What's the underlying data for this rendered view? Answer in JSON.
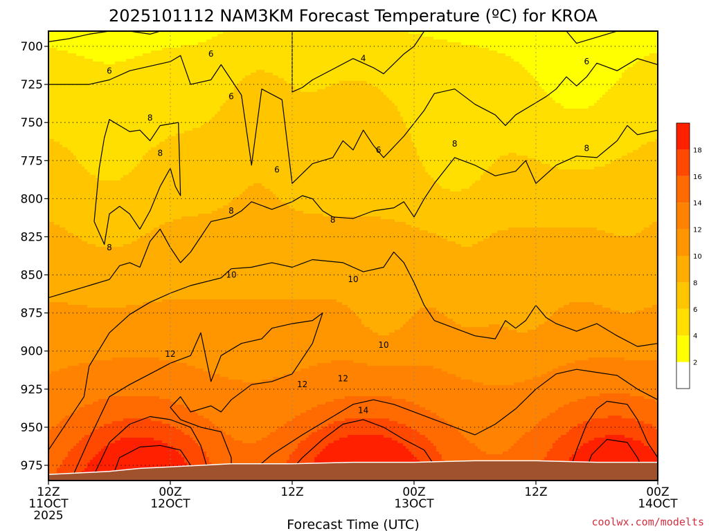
{
  "chart_data": {
    "type": "heatmap",
    "title": "2025101112 NAM3KM Forecast Temperature (ºC) for KROA",
    "xlabel": "Forecast Time (UTC)",
    "ylabel": "",
    "x_range_hours": [
      0,
      60
    ],
    "y_range_hpa": [
      690,
      985
    ],
    "y_ticks": [
      700,
      725,
      750,
      775,
      800,
      825,
      850,
      875,
      900,
      925,
      950,
      975
    ],
    "y_tick_labels": [
      "700",
      "725",
      "750",
      "775",
      "800",
      "825",
      "850",
      "875",
      "900",
      "925",
      "950",
      "975"
    ],
    "x_ticks": [
      {
        "hour": 0,
        "l1": "12Z",
        "l2": "11OCT",
        "l3": "2025"
      },
      {
        "hour": 12,
        "l1": "00Z",
        "l2": "12OCT",
        "l3": ""
      },
      {
        "hour": 24,
        "l1": "12Z",
        "l2": "",
        "l3": ""
      },
      {
        "hour": 36,
        "l1": "00Z",
        "l2": "13OCT",
        "l3": ""
      },
      {
        "hour": 48,
        "l1": "12Z",
        "l2": "",
        "l3": ""
      },
      {
        "hour": 60,
        "l1": "00Z",
        "l2": "14OCT",
        "l3": ""
      }
    ],
    "colorbar": {
      "min": 0,
      "max": 20,
      "levels": [
        0,
        2,
        4,
        6,
        8,
        10,
        12,
        14,
        16,
        18,
        20
      ],
      "labels": [
        "2",
        "4",
        "6",
        "8",
        "10",
        "12",
        "14",
        "16",
        "18"
      ],
      "colors": [
        "#ffffff",
        "#ffff00",
        "#ffdf00",
        "#ffc600",
        "#ffad00",
        "#ff9600",
        "#ff8300",
        "#ff6b00",
        "#ff4800",
        "#ff2000"
      ]
    },
    "series": [
      {
        "name": "4",
        "values": [
          [
            0,
            690
          ],
          [
            0,
            697
          ],
          [
            2,
            695
          ],
          [
            4,
            692
          ],
          [
            6,
            690
          ],
          [
            8,
            690
          ],
          [
            10,
            692
          ],
          [
            11,
            690
          ]
        ]
      },
      {
        "name": "4",
        "values": [
          [
            24,
            690
          ],
          [
            24,
            730
          ],
          [
            25,
            727
          ],
          [
            26,
            722
          ],
          [
            28,
            715
          ],
          [
            30,
            708
          ],
          [
            32,
            714
          ],
          [
            33,
            718
          ],
          [
            35,
            705
          ],
          [
            36,
            700
          ],
          [
            37,
            690
          ]
        ]
      },
      {
        "name": "4",
        "values": [
          [
            51,
            690
          ],
          [
            52,
            698
          ],
          [
            54,
            694
          ],
          [
            56,
            690
          ],
          [
            60,
            690
          ]
        ]
      },
      {
        "name": "6",
        "values": [
          [
            0,
            725
          ],
          [
            4,
            725
          ],
          [
            6,
            722
          ],
          [
            8,
            716
          ],
          [
            10,
            713
          ],
          [
            12,
            710
          ],
          [
            13,
            706
          ],
          [
            14,
            725
          ],
          [
            16,
            722
          ],
          [
            17,
            712
          ],
          [
            18,
            722
          ],
          [
            19,
            732
          ],
          [
            20,
            778
          ],
          [
            21,
            728
          ],
          [
            23,
            735
          ],
          [
            24,
            790
          ],
          [
            26,
            777
          ],
          [
            28,
            773
          ],
          [
            29,
            762
          ],
          [
            30,
            768
          ],
          [
            31,
            755
          ],
          [
            32,
            765
          ],
          [
            33,
            773
          ],
          [
            35,
            759
          ],
          [
            37,
            742
          ],
          [
            38,
            731
          ],
          [
            40,
            728
          ],
          [
            42,
            738
          ],
          [
            44,
            745
          ],
          [
            45,
            752
          ],
          [
            46,
            745
          ],
          [
            48,
            737
          ],
          [
            49,
            733
          ],
          [
            50,
            728
          ],
          [
            51,
            720
          ],
          [
            52,
            726
          ],
          [
            53,
            720
          ],
          [
            54,
            711
          ],
          [
            56,
            716
          ],
          [
            58,
            708
          ],
          [
            60,
            712
          ]
        ]
      },
      {
        "name": "8",
        "values": [
          [
            0,
            865
          ],
          [
            2,
            861
          ],
          [
            4,
            857
          ],
          [
            6,
            853
          ],
          [
            7,
            844
          ],
          [
            8,
            842
          ],
          [
            9,
            845
          ],
          [
            10,
            828
          ],
          [
            11,
            820
          ],
          [
            12,
            832
          ],
          [
            13,
            842
          ],
          [
            14,
            835
          ],
          [
            16,
            815
          ],
          [
            18,
            812
          ],
          [
            19,
            808
          ],
          [
            20,
            802
          ],
          [
            22,
            807
          ],
          [
            24,
            802
          ],
          [
            25,
            798
          ],
          [
            26,
            800
          ],
          [
            27,
            808
          ],
          [
            28,
            812
          ],
          [
            30,
            813
          ],
          [
            32,
            808
          ],
          [
            34,
            806
          ],
          [
            35,
            802
          ],
          [
            36,
            812
          ],
          [
            37,
            800
          ],
          [
            38,
            790
          ],
          [
            40,
            773
          ],
          [
            42,
            778
          ],
          [
            44,
            785
          ],
          [
            46,
            782
          ],
          [
            47,
            775
          ],
          [
            48,
            790
          ],
          [
            50,
            778
          ],
          [
            52,
            772
          ],
          [
            54,
            773
          ],
          [
            56,
            762
          ],
          [
            57,
            752
          ],
          [
            58,
            758
          ],
          [
            60,
            755
          ]
        ]
      },
      {
        "name": "8",
        "values": [
          [
            4.5,
            815
          ],
          [
            5,
            780
          ],
          [
            5.5,
            760
          ],
          [
            6,
            748
          ],
          [
            7,
            752
          ],
          [
            8,
            756
          ],
          [
            9,
            755
          ],
          [
            10,
            762
          ],
          [
            11,
            752
          ],
          [
            12.8,
            750
          ],
          [
            13,
            798
          ],
          [
            12.5,
            792
          ],
          [
            12,
            780
          ],
          [
            11,
            792
          ],
          [
            10,
            808
          ],
          [
            9,
            820
          ],
          [
            8,
            810
          ],
          [
            7,
            805
          ],
          [
            6,
            810
          ],
          [
            5.5,
            830
          ],
          [
            4.5,
            815
          ]
        ]
      },
      {
        "name": "10",
        "values": [
          [
            0,
            965
          ],
          [
            2,
            945
          ],
          [
            3.5,
            930
          ],
          [
            4,
            910
          ],
          [
            6,
            888
          ],
          [
            8,
            876
          ],
          [
            10,
            868
          ],
          [
            12,
            862
          ],
          [
            14,
            857
          ],
          [
            17,
            852
          ],
          [
            18,
            846
          ],
          [
            20,
            845
          ],
          [
            22,
            842
          ],
          [
            24,
            845
          ],
          [
            26,
            840
          ],
          [
            29,
            842
          ],
          [
            31,
            848
          ],
          [
            33,
            845
          ],
          [
            34,
            835
          ],
          [
            35,
            842
          ],
          [
            36,
            855
          ],
          [
            37,
            870
          ],
          [
            38,
            880
          ],
          [
            40,
            885
          ],
          [
            42,
            890
          ],
          [
            44,
            892
          ],
          [
            45,
            880
          ],
          [
            46,
            885
          ],
          [
            47,
            880
          ],
          [
            48,
            870
          ],
          [
            49,
            878
          ],
          [
            50,
            882
          ],
          [
            52,
            887
          ],
          [
            54,
            882
          ],
          [
            56,
            890
          ],
          [
            58,
            897
          ],
          [
            60,
            895
          ]
        ]
      },
      {
        "name": "12",
        "values": [
          [
            2,
            988
          ],
          [
            4,
            958
          ],
          [
            6,
            930
          ],
          [
            8,
            922
          ],
          [
            10,
            915
          ],
          [
            12,
            908
          ],
          [
            14,
            903
          ],
          [
            15,
            888
          ],
          [
            16,
            920
          ],
          [
            17,
            903
          ],
          [
            19,
            895
          ],
          [
            21,
            892
          ],
          [
            22,
            885
          ],
          [
            24,
            882
          ],
          [
            26,
            880
          ],
          [
            27,
            875
          ],
          [
            26,
            895
          ],
          [
            24,
            915
          ],
          [
            22,
            920
          ],
          [
            20,
            922
          ],
          [
            18,
            932
          ],
          [
            17,
            940
          ],
          [
            16,
            936
          ],
          [
            14,
            940
          ],
          [
            13,
            930
          ],
          [
            12,
            937
          ],
          [
            13,
            945
          ],
          [
            15,
            950
          ],
          [
            17,
            953
          ],
          [
            18,
            970
          ],
          [
            18,
            985
          ]
        ]
      },
      {
        "name": "12",
        "values": [
          [
            19,
            985
          ],
          [
            22,
            968
          ],
          [
            25,
            955
          ],
          [
            28,
            943
          ],
          [
            30,
            935
          ],
          [
            32,
            932
          ],
          [
            34,
            935
          ],
          [
            36,
            940
          ],
          [
            38,
            945
          ],
          [
            40,
            950
          ],
          [
            42,
            955
          ],
          [
            44,
            948
          ],
          [
            46,
            938
          ],
          [
            48,
            925
          ],
          [
            50,
            915
          ],
          [
            52,
            912
          ],
          [
            54,
            914
          ],
          [
            56,
            916
          ],
          [
            58,
            925
          ],
          [
            60,
            932
          ]
        ]
      },
      {
        "name": "14",
        "values": [
          [
            4,
            988
          ],
          [
            6,
            960
          ],
          [
            8,
            948
          ],
          [
            10,
            943
          ],
          [
            12,
            945
          ],
          [
            14,
            950
          ],
          [
            15,
            962
          ],
          [
            16,
            985
          ]
        ]
      },
      {
        "name": "14",
        "values": [
          [
            23,
            985
          ],
          [
            25,
            970
          ],
          [
            27,
            958
          ],
          [
            29,
            948
          ],
          [
            31,
            945
          ],
          [
            33,
            950
          ],
          [
            35,
            958
          ],
          [
            37,
            965
          ],
          [
            38,
            975
          ],
          [
            39,
            985
          ]
        ]
      },
      {
        "name": "14",
        "values": [
          [
            51,
            985
          ],
          [
            52,
            965
          ],
          [
            53,
            948
          ],
          [
            54,
            938
          ],
          [
            55,
            933
          ],
          [
            57,
            935
          ],
          [
            58,
            945
          ],
          [
            59,
            960
          ],
          [
            60,
            970
          ]
        ]
      },
      {
        "name": "16",
        "values": [
          [
            6,
            988
          ],
          [
            7,
            970
          ],
          [
            9,
            963
          ],
          [
            11,
            962
          ],
          [
            13,
            965
          ],
          [
            14,
            975
          ],
          [
            14.5,
            985
          ]
        ]
      },
      {
        "name": "16",
        "values": [
          [
            52.5,
            985
          ],
          [
            53.5,
            968
          ],
          [
            55,
            958
          ],
          [
            57,
            960
          ],
          [
            58,
            970
          ],
          [
            59,
            985
          ]
        ]
      },
      {
        "name": "18",
        "values": [
          [
            8,
            985
          ],
          [
            9,
            980
          ],
          [
            10,
            979
          ],
          [
            11,
            985
          ]
        ]
      },
      {
        "name": "18",
        "values": [
          [
            55,
            985
          ],
          [
            56,
            980
          ],
          [
            57,
            985
          ]
        ]
      }
    ],
    "contour_labels": [
      {
        "text": "4",
        "hour": 31,
        "hpa": 708
      },
      {
        "text": "6",
        "hour": 6,
        "hpa": 716
      },
      {
        "text": "6",
        "hour": 16,
        "hpa": 705
      },
      {
        "text": "6",
        "hour": 18,
        "hpa": 733
      },
      {
        "text": "6",
        "hour": 22.5,
        "hpa": 781
      },
      {
        "text": "6",
        "hour": 32.5,
        "hpa": 768
      },
      {
        "text": "6",
        "hour": 53,
        "hpa": 710
      },
      {
        "text": "8",
        "hour": 10,
        "hpa": 747
      },
      {
        "text": "8",
        "hour": 11,
        "hpa": 770
      },
      {
        "text": "8",
        "hour": 6,
        "hpa": 832
      },
      {
        "text": "8",
        "hour": 18,
        "hpa": 808
      },
      {
        "text": "8",
        "hour": 28,
        "hpa": 814
      },
      {
        "text": "8",
        "hour": 40,
        "hpa": 764
      },
      {
        "text": "8",
        "hour": 53,
        "hpa": 767
      },
      {
        "text": "10",
        "hour": 18,
        "hpa": 850
      },
      {
        "text": "10",
        "hour": 30,
        "hpa": 853
      },
      {
        "text": "10",
        "hour": 33,
        "hpa": 896
      },
      {
        "text": "12",
        "hour": 12,
        "hpa": 902
      },
      {
        "text": "12",
        "hour": 25,
        "hpa": 922
      },
      {
        "text": "12",
        "hour": 29,
        "hpa": 918
      },
      {
        "text": "14",
        "hour": 31,
        "hpa": 939
      }
    ]
  },
  "credit": "coolwx.com/modelts"
}
